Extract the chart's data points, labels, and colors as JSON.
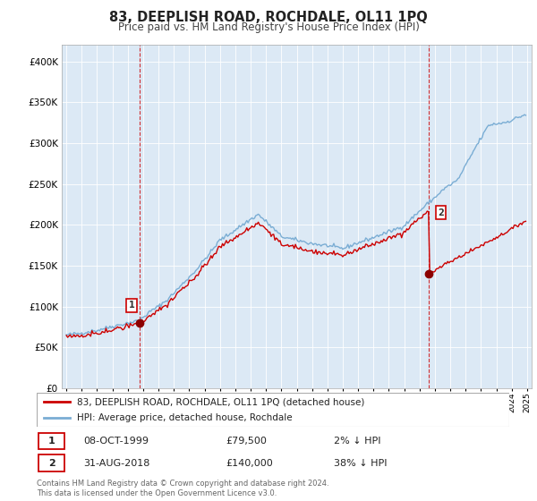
{
  "title": "83, DEEPLISH ROAD, ROCHDALE, OL11 1PQ",
  "subtitle": "Price paid vs. HM Land Registry's House Price Index (HPI)",
  "hpi_label": "HPI: Average price, detached house, Rochdale",
  "property_label": "83, DEEPLISH ROAD, ROCHDALE, OL11 1PQ (detached house)",
  "transaction1_date": "08-OCT-1999",
  "transaction1_price": 79500,
  "transaction1_pct": "2% ↓ HPI",
  "transaction2_date": "31-AUG-2018",
  "transaction2_price": 140000,
  "transaction2_pct": "38% ↓ HPI",
  "footer": "Contains HM Land Registry data © Crown copyright and database right 2024.\nThis data is licensed under the Open Government Licence v3.0.",
  "ylim_min": 0,
  "ylim_max": 420000,
  "line_color_property": "#cc0000",
  "line_color_hpi": "#7aadd4",
  "vline_color": "#cc0000",
  "marker_color": "#8b0000",
  "background_color": "#ffffff",
  "plot_bg_color": "#dce9f5",
  "grid_color": "#ffffff"
}
